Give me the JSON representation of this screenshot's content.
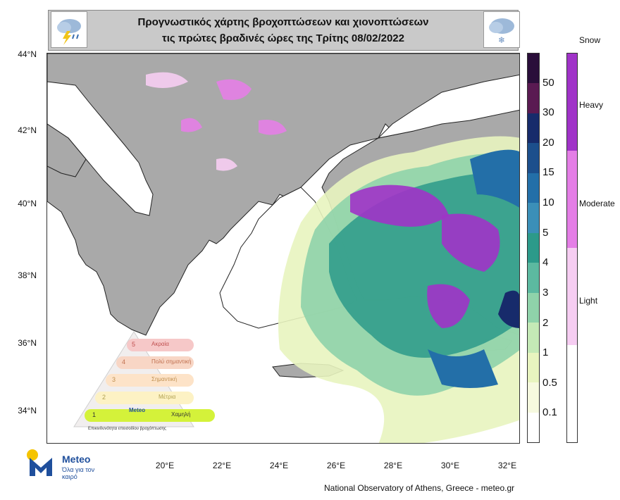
{
  "header": {
    "title_line1": "Προγνωστικός χάρτης βροχοπτώσεων και χιονοπτώσεων",
    "title_line2": "τις πρώτες βραδινές ώρες της Τρίτης 08/02/2022"
  },
  "icons": {
    "left": "rain-thunder-cloud-icon",
    "right": "snow-cloud-icon"
  },
  "axes": {
    "lat_labels": [
      "44°N",
      "42°N",
      "40°N",
      "38°N",
      "36°N",
      "34°N"
    ],
    "lon_labels": [
      "20°E",
      "22°E",
      "24°E",
      "26°E",
      "28°E",
      "30°E",
      "32°E"
    ]
  },
  "rain_legend": {
    "labels": [
      "50",
      "30",
      "20",
      "15",
      "10",
      "5",
      "4",
      "3",
      "2",
      "1",
      "0.5",
      "0.1"
    ],
    "colors": [
      "#2a0e3a",
      "#5a1a52",
      "#172b6b",
      "#1c4f8c",
      "#236fa8",
      "#3b8fb8",
      "#2c9a8a",
      "#5cb9a0",
      "#8fd3aa",
      "#c4e9b6",
      "#e8f4bf",
      "#f6f9df",
      "#ffffff"
    ]
  },
  "snow_legend": {
    "title": "Snow",
    "labels": [
      "Heavy",
      "Moderate",
      "Light"
    ],
    "colors": [
      "#a033c8",
      "#e47ee6",
      "#f6cdf2",
      "#ffffff"
    ]
  },
  "pyramid": {
    "levels": [
      "Ακραία",
      "Πολύ σημαντική",
      "Σημαντική",
      "Μέτρια",
      "Χαμηλή"
    ],
    "numbers": [
      "5",
      "4",
      "3",
      "2",
      "1"
    ],
    "active_level": "Χαμηλή",
    "brand": "Meteo",
    "caption": "Επικινδυνότητα επεισοδίου βροχόπτωσης"
  },
  "logo": {
    "name": "Meteo",
    "tagline": "Όλα για τον καιρό"
  },
  "credit": "National Observatory of Athens, Greece - meteo.gr",
  "colors": {
    "land": "#a9a9a9",
    "sea": "#ffffff",
    "border": "#222222",
    "accent": "#1f4f9c"
  }
}
